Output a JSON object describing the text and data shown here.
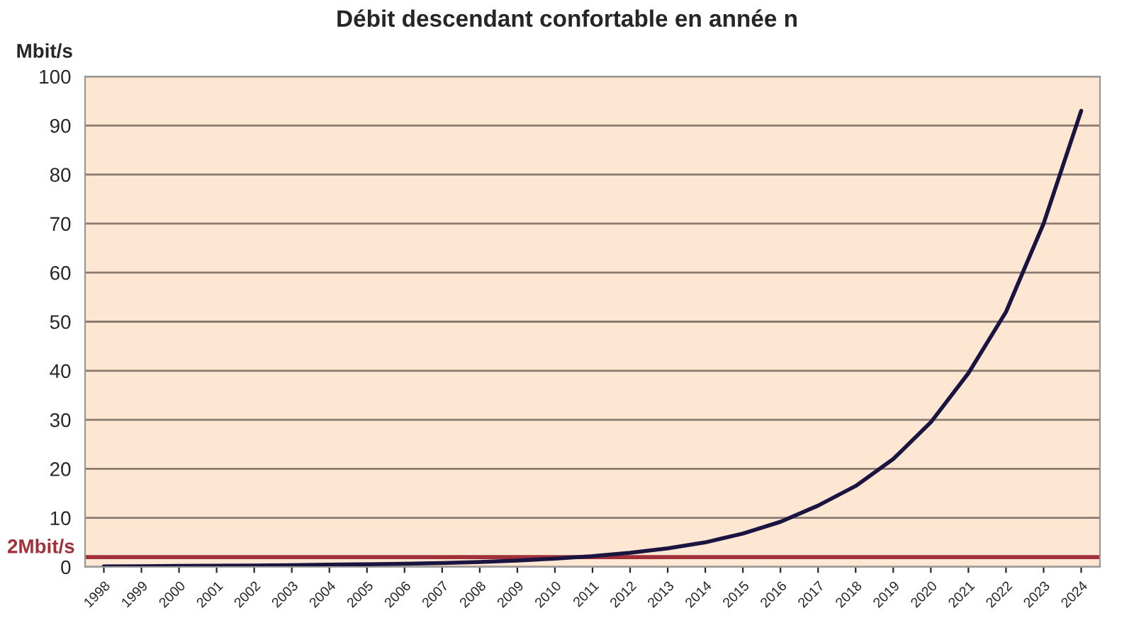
{
  "chart_data": {
    "type": "line",
    "title": "Débit descendant confortable en année n",
    "ylabel": "Mbit/s",
    "categories": [
      "1998",
      "1999",
      "2000",
      "2001",
      "2002",
      "2003",
      "2004",
      "2005",
      "2006",
      "2007",
      "2008",
      "2009",
      "2010",
      "2011",
      "2012",
      "2013",
      "2014",
      "2015",
      "2016",
      "2017",
      "2018",
      "2019",
      "2020",
      "2021",
      "2022",
      "2023",
      "2024"
    ],
    "series": [
      {
        "color": "#1a1440",
        "values": [
          0.1,
          0.15,
          0.2,
          0.25,
          0.3,
          0.35,
          0.45,
          0.55,
          0.65,
          0.8,
          1.0,
          1.3,
          1.7,
          2.2,
          2.9,
          3.8,
          5.0,
          6.8,
          9.2,
          12.5,
          16.5,
          22,
          29.5,
          39.5,
          52,
          70,
          93
        ]
      }
    ],
    "ylim": [
      0,
      100
    ],
    "yticks": [
      0,
      10,
      20,
      30,
      40,
      50,
      60,
      70,
      80,
      90,
      100
    ],
    "grid": "y",
    "marker": "none",
    "line_style": "solid",
    "ref_lines": [
      {
        "axis": "y",
        "value": 2,
        "label": "2Mbit/s",
        "color": "#a0303a"
      }
    ]
  }
}
